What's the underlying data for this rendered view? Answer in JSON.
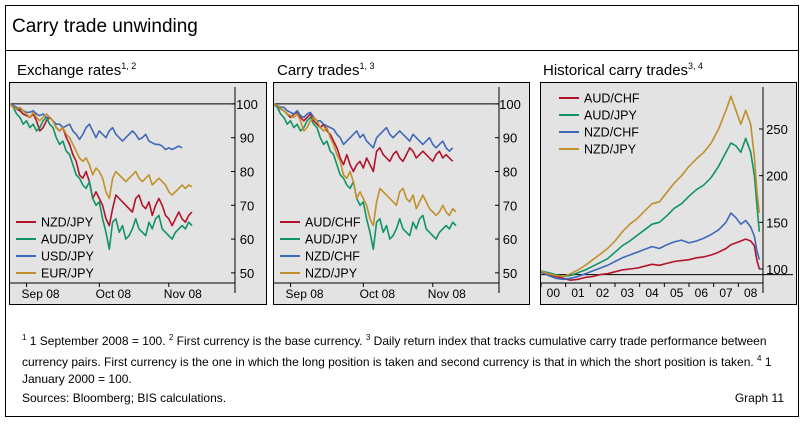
{
  "title": "Carry trade unwinding",
  "footnote": {
    "n1": "1",
    "t1": " 1 September 2008 = 100.  ",
    "n2": "2",
    "t2": " First currency is the base currency.  ",
    "n3": "3",
    "t3": " Daily return index that tracks cumulative carry trade performance between currency pairs. First currency is the one in which the long position is taken and second currency is that in which the short position is taken.  ",
    "n4": "4",
    "t4": " 1 January 2000 = 100."
  },
  "sources": "Sources: Bloomberg; BIS calculations.",
  "graph_number": "Graph 11",
  "colors": {
    "red": "#b3132a",
    "green": "#0f9462",
    "blue": "#3f68b8",
    "gold": "#c0902a",
    "panel_bg": "#e3e3e3"
  },
  "chart_data": [
    {
      "type": "line",
      "title": "Exchange rates",
      "title_sup": "1, 2",
      "x_ticks": [
        "Sep 08",
        "Oct 08",
        "Nov 08"
      ],
      "xlim": [
        0,
        68
      ],
      "x_tick_pos": [
        5,
        27,
        48
      ],
      "ylim": [
        47,
        105
      ],
      "y_ticks": [
        50,
        60,
        70,
        80,
        90,
        100
      ],
      "ref_line": 100,
      "legend_position": "lower-left",
      "series": [
        {
          "name": "NZD/JPY",
          "color": "red",
          "values": [
            100,
            99.5,
            98.5,
            98,
            97,
            96.5,
            96,
            97,
            95,
            92,
            93,
            95,
            96,
            95,
            93,
            92,
            93,
            90,
            88,
            85,
            83,
            79,
            78,
            80,
            77,
            72,
            74,
            72,
            70,
            66,
            64,
            69,
            73,
            72,
            71,
            70,
            69,
            68,
            72,
            73,
            70,
            69,
            71,
            67,
            70,
            72,
            70,
            67,
            66,
            64,
            66,
            68,
            66,
            65,
            67,
            68
          ]
        },
        {
          "name": "AUD/JPY",
          "color": "green",
          "values": [
            100,
            99,
            97,
            96,
            94,
            95,
            93,
            94,
            92,
            93,
            95,
            96,
            94,
            93,
            90,
            88,
            89,
            86,
            85,
            82,
            79,
            78,
            76,
            75,
            77,
            72,
            70,
            71,
            66,
            62,
            57,
            65,
            66,
            62,
            64,
            60,
            61,
            63,
            66,
            63,
            62,
            61,
            65,
            63,
            66,
            67,
            63,
            62,
            61,
            60,
            62,
            63,
            64,
            63,
            65,
            64
          ]
        },
        {
          "name": "USD/JPY",
          "color": "blue",
          "values": [
            100,
            99.5,
            99,
            98.5,
            98,
            97.5,
            97.5,
            98,
            97,
            96.5,
            97,
            96,
            96,
            95,
            94,
            94,
            93,
            93.5,
            94,
            92,
            91,
            89.5,
            91,
            93,
            94,
            92,
            90,
            92,
            91,
            90,
            92,
            93,
            91,
            90,
            89,
            90,
            91,
            92,
            91,
            89.5,
            90,
            91,
            89,
            88.5,
            88,
            88,
            87.5,
            86.5,
            87,
            86.5,
            87,
            87.5,
            87
          ]
        },
        {
          "name": "EUR/JPY",
          "color": "gold",
          "values": [
            100,
            99,
            98.5,
            99,
            98,
            97,
            96,
            97.5,
            96,
            95,
            96,
            97,
            96,
            95,
            93,
            92,
            93,
            91,
            90,
            88,
            86,
            84,
            83,
            84,
            82,
            79,
            81,
            80,
            78,
            74,
            72,
            78,
            80,
            79,
            78,
            77,
            78,
            79,
            80,
            78,
            77,
            78,
            79,
            76,
            77,
            78,
            77,
            76,
            74,
            73,
            74,
            75,
            76,
            75,
            76,
            75.5
          ]
        }
      ]
    },
    {
      "type": "line",
      "title": "Carry trades",
      "title_sup": "1, 3",
      "x_ticks": [
        "Sep 08",
        "Oct 08",
        "Nov 08"
      ],
      "xlim": [
        0,
        68
      ],
      "x_tick_pos": [
        5,
        27,
        48
      ],
      "ylim": [
        47,
        105
      ],
      "y_ticks": [
        50,
        60,
        70,
        80,
        90,
        100
      ],
      "ref_line": 100,
      "legend_position": "lower-left",
      "series": [
        {
          "name": "AUD/CHF",
          "color": "red",
          "values": [
            100,
            99,
            98.5,
            98,
            97,
            96,
            97,
            97.5,
            96,
            95,
            96,
            97,
            95,
            94,
            93,
            94,
            92,
            91,
            89,
            87,
            84,
            82,
            85,
            82,
            80,
            82,
            83,
            81,
            84,
            82,
            80,
            86,
            87,
            85,
            84,
            83,
            85,
            86,
            84,
            83,
            85,
            87,
            86,
            84,
            85,
            86,
            85,
            84,
            83,
            85,
            86,
            84,
            85,
            84,
            83
          ]
        },
        {
          "name": "AUD/JPY",
          "color": "green",
          "values": [
            100,
            99,
            97,
            96,
            94,
            95,
            93,
            94,
            92,
            93,
            95,
            96,
            94,
            93,
            90,
            88,
            89,
            86,
            85,
            82,
            79,
            78,
            76,
            75,
            77,
            72,
            70,
            71,
            66,
            62,
            57,
            65,
            66,
            62,
            64,
            60,
            61,
            63,
            66,
            63,
            62,
            61,
            65,
            63,
            66,
            67,
            63,
            62,
            61,
            60,
            62,
            63,
            64,
            63,
            65,
            64
          ]
        },
        {
          "name": "NZD/CHF",
          "color": "blue",
          "values": [
            100,
            99.5,
            99,
            99,
            98,
            97.5,
            97,
            98,
            96.5,
            96,
            97,
            97.5,
            96,
            95,
            95,
            94,
            93.5,
            93,
            92.5,
            91,
            90,
            88,
            89,
            90,
            91,
            92,
            90,
            91,
            89,
            88,
            87,
            90,
            91,
            92,
            93,
            91,
            90,
            91,
            92,
            91,
            90,
            89,
            91,
            90,
            89,
            88,
            89,
            90,
            88,
            87,
            88,
            89,
            87,
            86,
            87
          ]
        },
        {
          "name": "NZD/JPY",
          "color": "gold",
          "values": [
            100,
            99.5,
            98.5,
            98,
            97,
            96.5,
            96,
            97,
            95,
            92,
            93,
            95,
            96,
            95,
            93,
            92,
            93,
            90,
            88,
            85,
            83,
            79,
            78,
            80,
            77,
            72,
            74,
            72,
            70,
            66,
            64,
            71,
            75,
            74,
            73,
            72,
            71,
            70,
            74,
            75,
            72,
            71,
            73,
            69,
            71,
            73,
            71,
            69,
            68,
            67,
            68,
            70,
            68,
            67,
            69,
            68
          ]
        }
      ]
    },
    {
      "type": "line",
      "title": "Historical carry trades",
      "title_sup": "3, 4",
      "x_ticks": [
        "00",
        "01",
        "02",
        "03",
        "04",
        "05",
        "06",
        "07",
        "08"
      ],
      "xlim": [
        2000,
        2009
      ],
      "ylim": [
        85,
        295
      ],
      "y_ticks": [
        100,
        150,
        200,
        250
      ],
      "ref_line": 94,
      "legend_position": "top-left",
      "series": [
        {
          "name": "AUD/CHF",
          "color": "red",
          "x": [
            2000,
            2000.3,
            2000.6,
            2000.9,
            2001.2,
            2001.5,
            2001.8,
            2002.1,
            2002.4,
            2002.7,
            2003,
            2003.3,
            2003.6,
            2003.9,
            2004.2,
            2004.5,
            2004.8,
            2005.1,
            2005.4,
            2005.7,
            2006,
            2006.3,
            2006.6,
            2006.9,
            2007.2,
            2007.5,
            2007.7,
            2007.9,
            2008.1,
            2008.3,
            2008.5,
            2008.65,
            2008.75,
            2008.85
          ],
          "values": [
            97,
            94,
            92,
            90,
            88,
            89,
            91,
            92,
            94,
            95,
            97,
            99,
            100,
            101,
            103,
            105,
            104,
            106,
            108,
            109,
            110,
            112,
            113,
            115,
            118,
            122,
            126,
            128,
            130,
            132,
            130,
            125,
            110,
            100
          ]
        },
        {
          "name": "AUD/JPY",
          "color": "green",
          "x": [
            2000,
            2000.3,
            2000.6,
            2000.9,
            2001.2,
            2001.5,
            2001.8,
            2002.1,
            2002.4,
            2002.7,
            2003,
            2003.3,
            2003.6,
            2003.9,
            2004.2,
            2004.5,
            2004.8,
            2005.1,
            2005.4,
            2005.7,
            2006,
            2006.3,
            2006.6,
            2006.9,
            2007.2,
            2007.5,
            2007.7,
            2007.9,
            2008.1,
            2008.3,
            2008.5,
            2008.65,
            2008.75,
            2008.85
          ],
          "values": [
            98,
            96,
            94,
            92,
            93,
            96,
            99,
            103,
            107,
            111,
            118,
            125,
            130,
            136,
            142,
            148,
            150,
            157,
            165,
            170,
            178,
            185,
            190,
            198,
            210,
            225,
            235,
            232,
            225,
            240,
            225,
            200,
            170,
            140
          ]
        },
        {
          "name": "NZD/CHF",
          "color": "blue",
          "x": [
            2000,
            2000.3,
            2000.6,
            2000.9,
            2001.2,
            2001.5,
            2001.8,
            2002.1,
            2002.4,
            2002.7,
            2003,
            2003.3,
            2003.6,
            2003.9,
            2004.2,
            2004.5,
            2004.8,
            2005.1,
            2005.4,
            2005.7,
            2006,
            2006.3,
            2006.6,
            2006.9,
            2007.2,
            2007.5,
            2007.7,
            2007.9,
            2008.1,
            2008.3,
            2008.5,
            2008.65,
            2008.75,
            2008.85
          ],
          "values": [
            97,
            93,
            90,
            89,
            90,
            92,
            95,
            98,
            101,
            104,
            108,
            112,
            115,
            118,
            121,
            124,
            122,
            126,
            129,
            131,
            128,
            130,
            133,
            137,
            142,
            150,
            160,
            155,
            148,
            152,
            145,
            135,
            120,
            110
          ]
        },
        {
          "name": "NZD/JPY",
          "color": "gold",
          "x": [
            2000,
            2000.3,
            2000.6,
            2000.9,
            2001.2,
            2001.5,
            2001.8,
            2002.1,
            2002.4,
            2002.7,
            2003,
            2003.3,
            2003.6,
            2003.9,
            2004.2,
            2004.5,
            2004.8,
            2005.1,
            2005.4,
            2005.7,
            2006,
            2006.3,
            2006.6,
            2006.9,
            2007.2,
            2007.5,
            2007.7,
            2007.9,
            2008.1,
            2008.3,
            2008.5,
            2008.65,
            2008.75,
            2008.85
          ],
          "values": [
            98,
            95,
            93,
            92,
            95,
            99,
            104,
            110,
            116,
            122,
            130,
            140,
            148,
            154,
            162,
            170,
            172,
            182,
            192,
            200,
            210,
            218,
            225,
            235,
            250,
            270,
            285,
            270,
            255,
            270,
            255,
            220,
            185,
            160
          ]
        }
      ]
    }
  ]
}
